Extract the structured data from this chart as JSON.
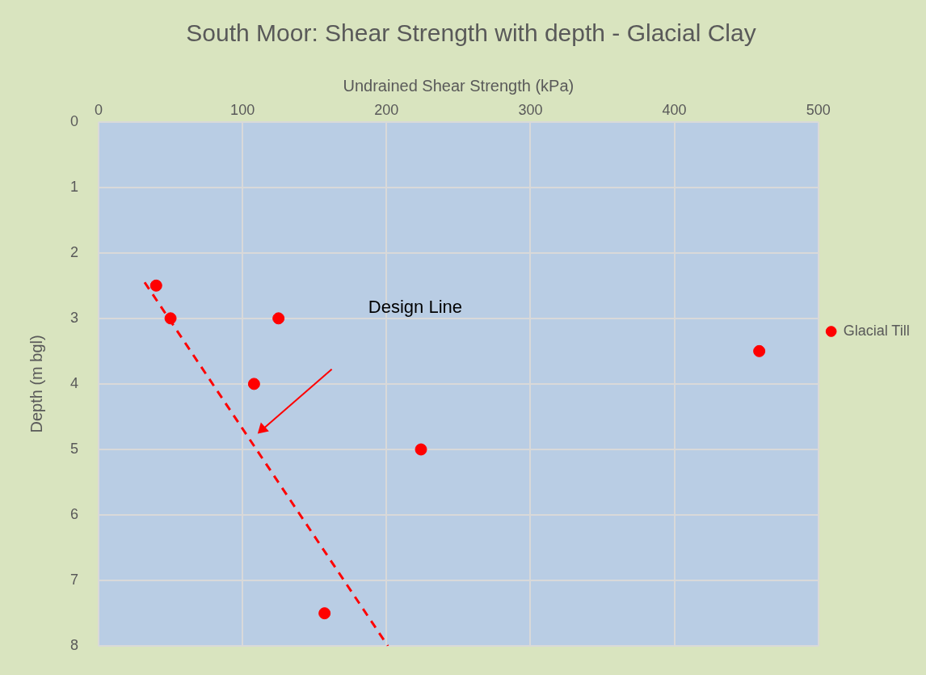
{
  "chart_data": {
    "type": "scatter",
    "title": "South Moor: Shear Strength with depth - Glacial Clay",
    "xlabel": "Undrained Shear Strength (kPa)",
    "ylabel": "Depth (m bgl)",
    "xlim": [
      0,
      500
    ],
    "xticks": [
      0,
      100,
      200,
      300,
      400,
      500
    ],
    "ylim": [
      8,
      0
    ],
    "yticks": [
      0,
      1,
      2,
      3,
      4,
      5,
      6,
      7,
      8
    ],
    "grid": true,
    "legend": "right",
    "marker": "circle",
    "series": [
      {
        "name": "Glacial Till",
        "color": "#ff0000",
        "x": [
          40,
          50,
          125,
          108,
          459,
          224,
          157
        ],
        "values": [
          2.5,
          3,
          3,
          4,
          3.5,
          5,
          7.5
        ]
      },
      {
        "type": "line",
        "color": "#ff0000",
        "line_style": "dashed",
        "marker": "none",
        "x": [
          32,
          201
        ],
        "values": [
          2.45,
          8
        ]
      }
    ],
    "annotations": [
      "Design Line"
    ]
  }
}
